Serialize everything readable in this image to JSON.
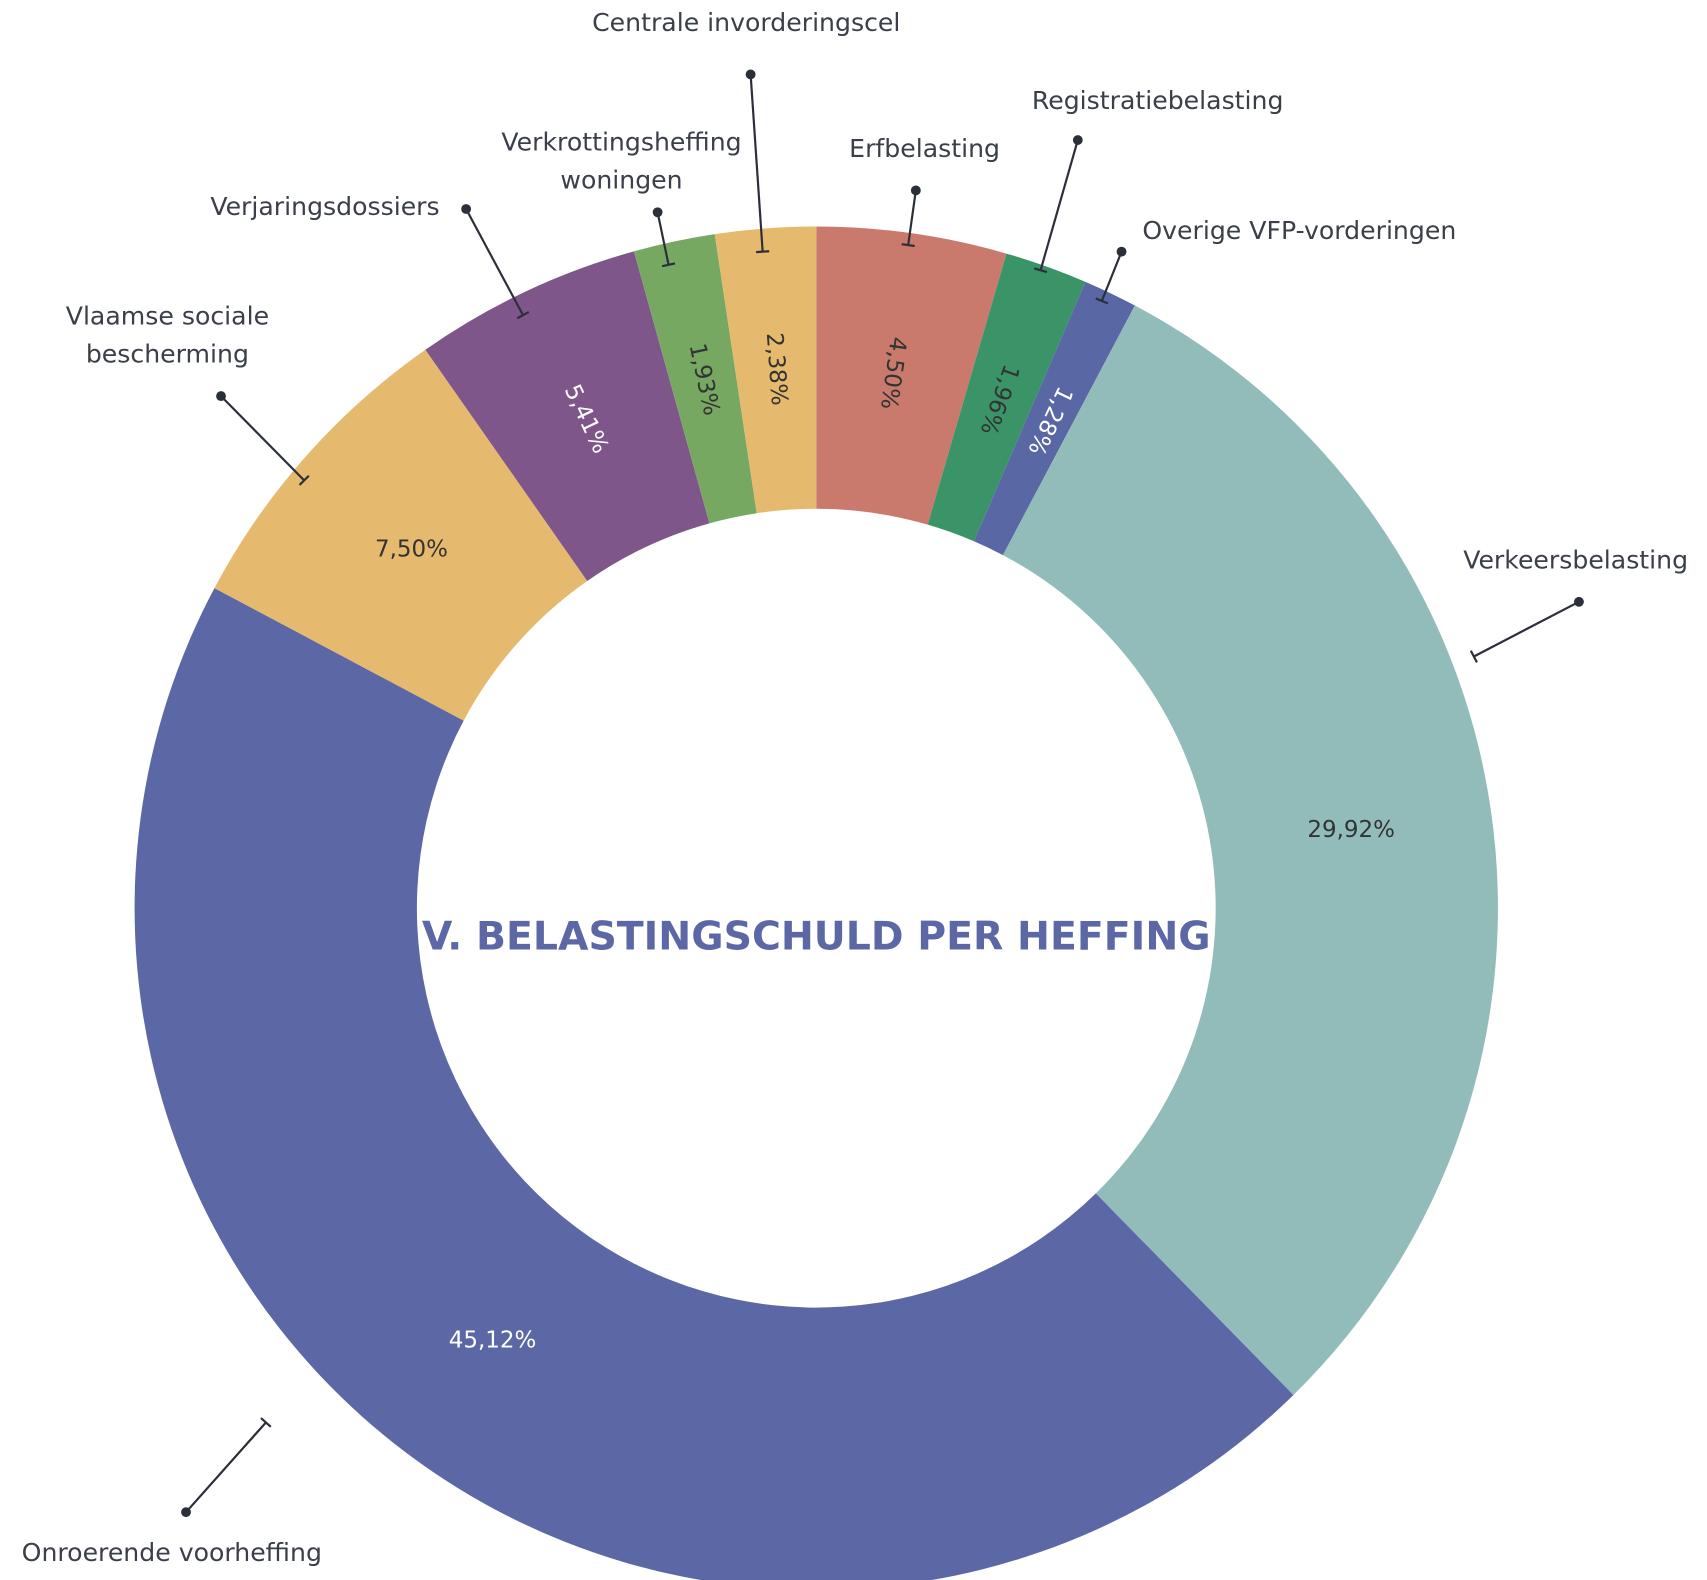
{
  "chart_data": {
    "type": "donut",
    "title": "V. BELASTINGSCHULD PER HEFFING",
    "categories": [
      "Erfbelasting",
      "Registratiebelasting",
      "Overige VFP-vorderingen",
      "Verkeersbelasting",
      "Onroerende voorheffing",
      "Vlaamse sociale bescherming",
      "Verjaringsdossiers",
      "Verkrottingsheffing woningen",
      "Centrale invorderingscel"
    ],
    "values": [
      4.5,
      1.96,
      1.28,
      29.92,
      45.12,
      7.5,
      5.41,
      1.93,
      2.38
    ],
    "value_labels": [
      "4,50%",
      "1,96%",
      "1,28%",
      "29,92%",
      "45,12%",
      "7,50%",
      "5,41%",
      "1,93%",
      "2,38%"
    ],
    "colors": [
      "#c97a6c",
      "#3a9468",
      "#5a67a5",
      "#92bcba",
      "#5b68a5",
      "#e6ba6e",
      "#7e5689",
      "#77a862",
      "#e6ba6e"
    ]
  }
}
